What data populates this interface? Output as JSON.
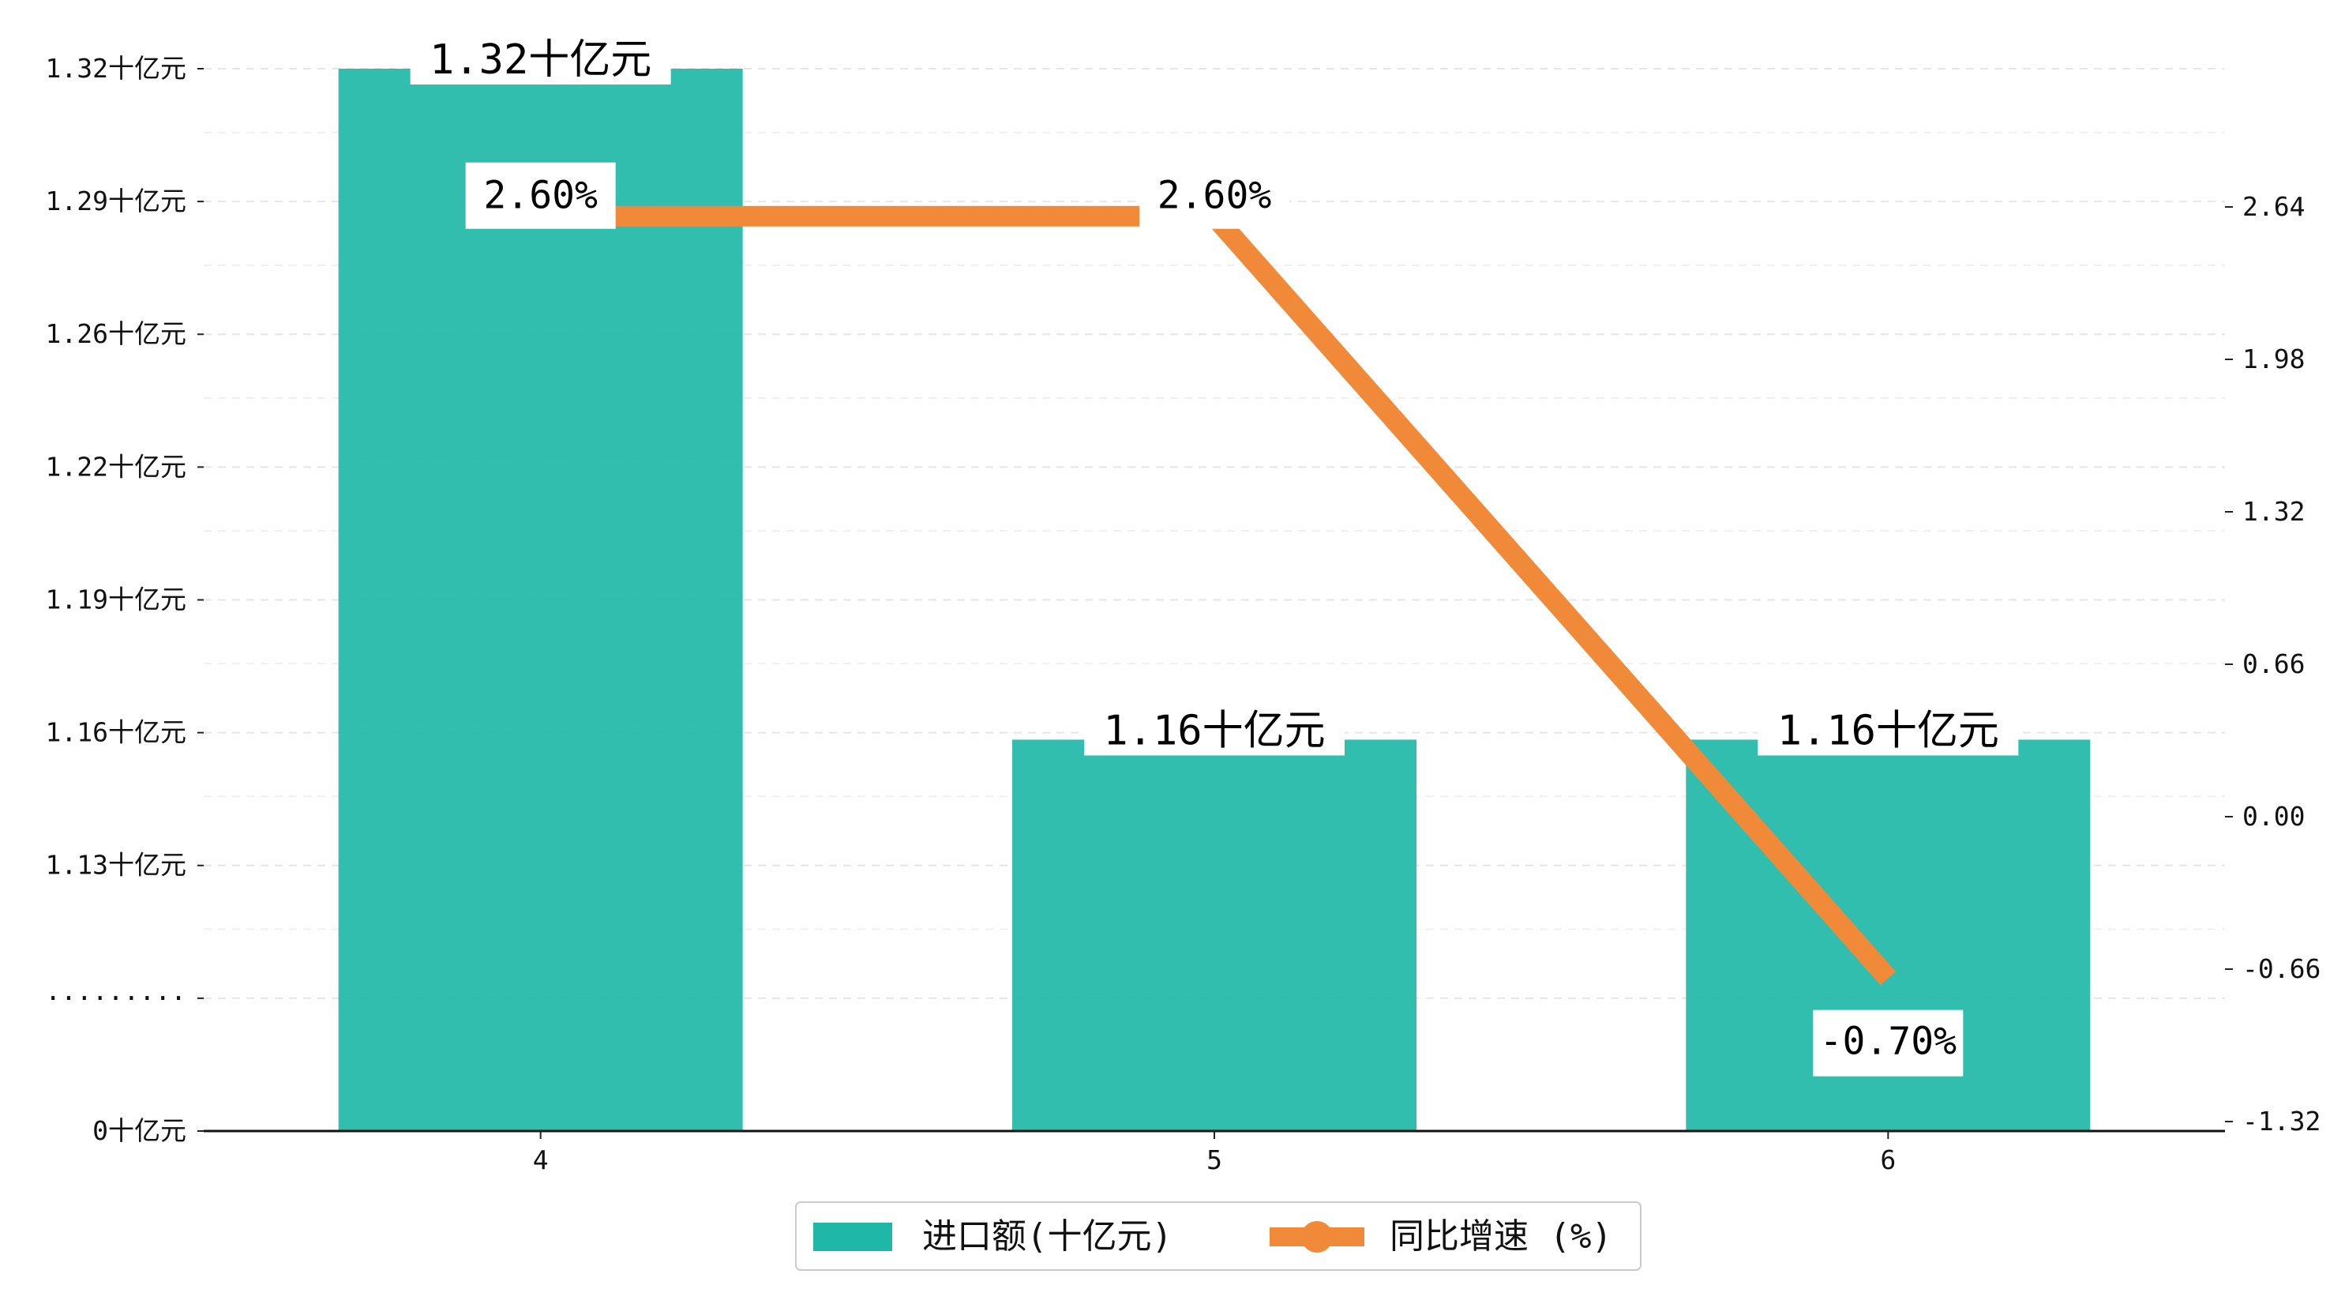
{
  "chart_data": {
    "type": "bar",
    "categories": [
      "4",
      "5",
      "6"
    ],
    "series": [
      {
        "name": "进口额(十亿元)",
        "type": "bar",
        "axis": "left",
        "values": [
          1.32,
          1.16,
          1.16
        ],
        "labels": [
          "1.32十亿元",
          "1.16十亿元",
          "1.16十亿元"
        ],
        "color": "#1fb8a8"
      },
      {
        "name": "同比增速 (%)",
        "type": "line",
        "axis": "right",
        "values": [
          2.6,
          2.6,
          -0.7
        ],
        "labels": [
          "2.60%",
          "2.60%",
          "-0.70%"
        ],
        "color": "#f08a38"
      }
    ],
    "y_left": {
      "tick_labels": [
        "0十亿元",
        "·········",
        "1.13十亿元",
        "1.16十亿元",
        "1.19十亿元",
        "1.22十亿元",
        "1.26十亿元",
        "1.29十亿元",
        "1.32十亿元"
      ],
      "broken_axis": true
    },
    "y_right": {
      "ticks": [
        -1.32,
        -0.66,
        0.0,
        0.66,
        1.32,
        1.98,
        2.64
      ],
      "tick_labels": [
        "-1.32",
        "-0.66",
        "0.00",
        "0.66",
        "1.32",
        "1.98",
        "2.64"
      ],
      "ylim": [
        -1.32,
        3.3
      ]
    },
    "grid": "horizontal dashed",
    "legend_position": "bottom-center",
    "xlabel": "",
    "ylabel": "",
    "title": ""
  }
}
